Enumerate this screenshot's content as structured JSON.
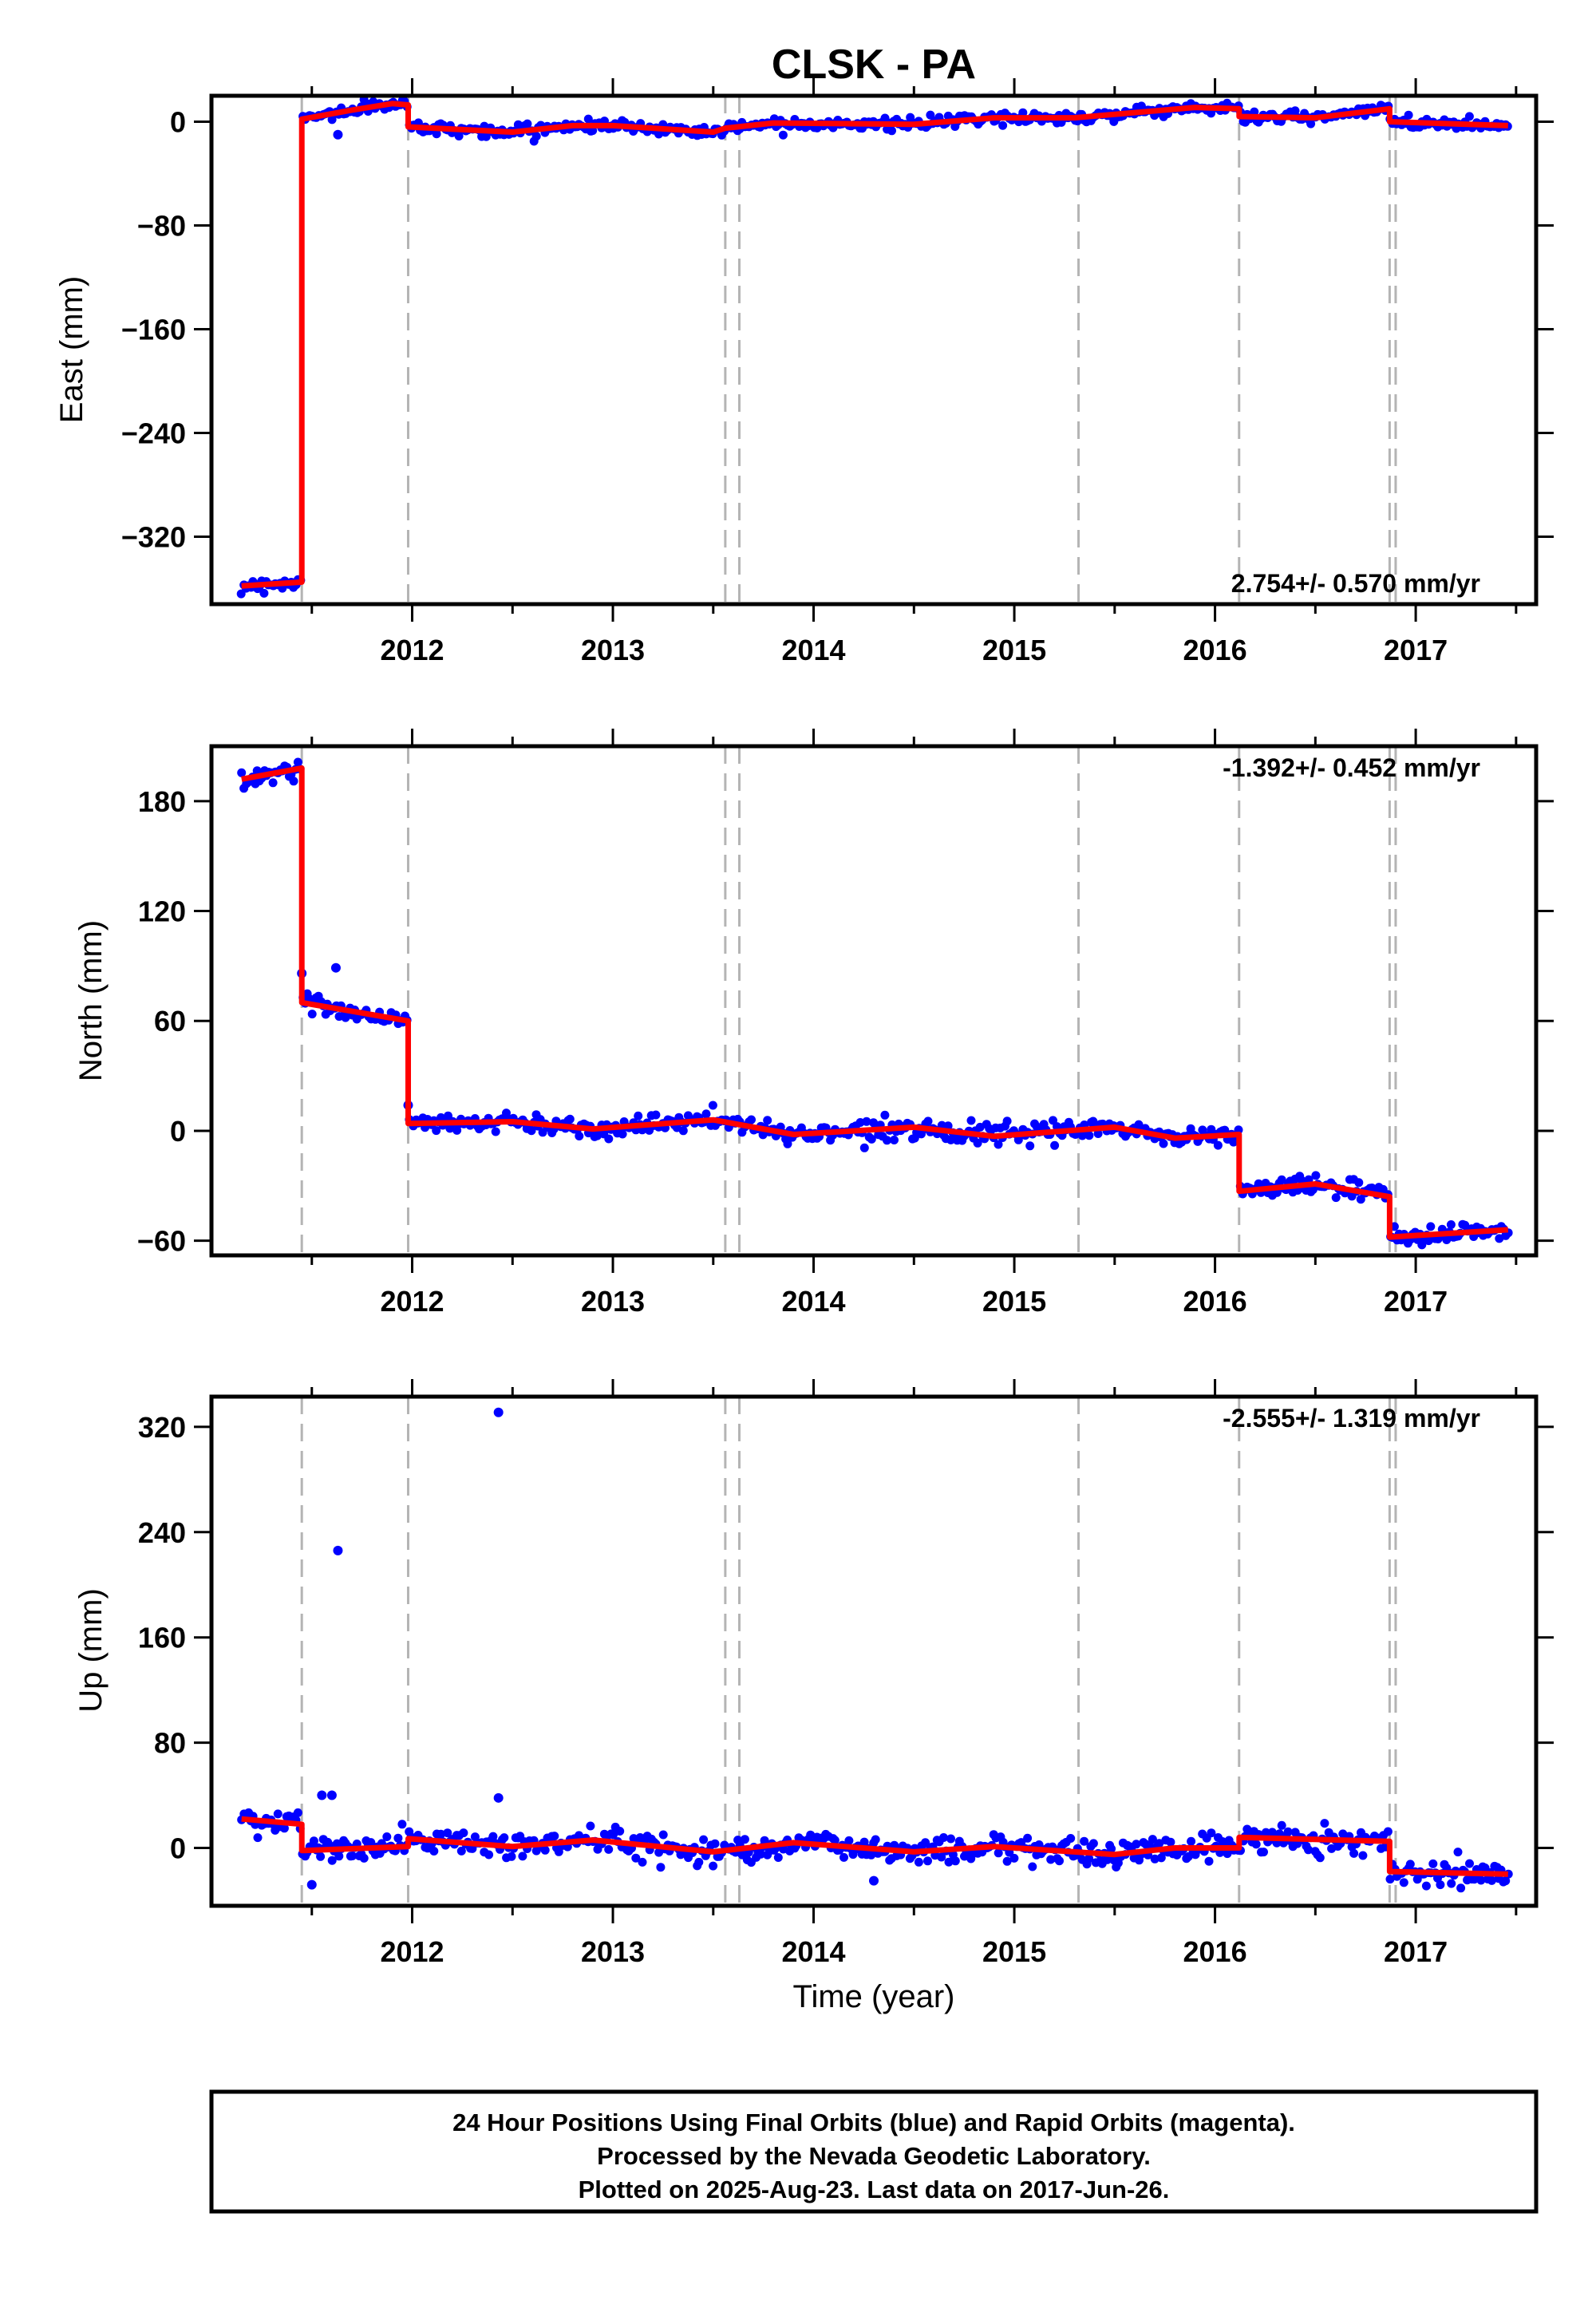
{
  "title": "CLSK - PA",
  "colors": {
    "final": "#0000ff",
    "model": "#ff0000",
    "event": "#b4b4b4",
    "frame": "#000000"
  },
  "chart_data": [
    {
      "type": "scatter",
      "ylabel": "East (mm)",
      "xlabel": "",
      "xlim": [
        2011.0,
        2017.6
      ],
      "ylim": [
        -372,
        20
      ],
      "xticks": [
        2012,
        2013,
        2014,
        2015,
        2016,
        2017
      ],
      "yticks": [
        0,
        -80,
        -160,
        -240,
        -320
      ],
      "rate_label": "2.754+/- 0.570 mm/yr",
      "rate_position": "bottom-right",
      "events": [
        2011.45,
        2011.98,
        2013.56,
        2013.63,
        2015.32,
        2016.12,
        2016.87,
        2016.9
      ],
      "model_series": {
        "name": "model",
        "x": [
          2011.15,
          2011.45,
          2011.45,
          2011.7,
          2011.9,
          2011.98,
          2011.98,
          2012.5,
          2012.8,
          2013.0,
          2013.5,
          2013.56,
          2013.8,
          2014.5,
          2014.9,
          2015.3,
          2015.9,
          2016.12,
          2016.12,
          2016.5,
          2016.87,
          2016.87,
          2017.46
        ],
        "y": [
          -358,
          -355,
          2,
          9,
          14,
          13,
          -4,
          -8,
          -3,
          -3,
          -8,
          -5,
          -1,
          -2,
          3,
          3,
          11,
          10,
          4,
          3,
          10,
          0,
          -3
        ]
      },
      "final_series": {
        "name": "final",
        "sd": 2.2,
        "outliers": [
          [
            2011.63,
            -10
          ]
        ]
      }
    },
    {
      "type": "scatter",
      "ylabel": "North (mm)",
      "xlabel": "",
      "xlim": [
        2011.0,
        2017.6
      ],
      "ylim": [
        -68,
        210
      ],
      "xticks": [
        2012,
        2013,
        2014,
        2015,
        2016,
        2017
      ],
      "yticks": [
        180,
        120,
        60,
        0,
        -60
      ],
      "rate_label": "-1.392+/- 0.452 mm/yr",
      "rate_position": "top-right",
      "events": [
        2011.45,
        2011.98,
        2013.56,
        2013.63,
        2015.32,
        2016.12,
        2016.87,
        2016.9
      ],
      "model_series": {
        "name": "model",
        "x": [
          2011.15,
          2011.45,
          2011.45,
          2011.98,
          2011.98,
          2012.5,
          2012.9,
          2013.5,
          2013.9,
          2014.5,
          2014.9,
          2015.5,
          2015.8,
          2016.12,
          2016.12,
          2016.5,
          2016.87,
          2016.87,
          2017.46
        ],
        "y": [
          192,
          198,
          70,
          60,
          4,
          5,
          1,
          6,
          -2,
          2,
          -3,
          2,
          -4,
          -2,
          -33,
          -29,
          -36,
          -58,
          -54
        ]
      },
      "final_series": {
        "name": "final",
        "sd": 2.5,
        "outliers": [
          [
            2011.62,
            89
          ],
          [
            2011.45,
            86
          ],
          [
            2011.98,
            14
          ]
        ]
      }
    },
    {
      "type": "scatter",
      "ylabel": "Up (mm)",
      "xlabel": "Time (year)",
      "xlim": [
        2011.0,
        2017.6
      ],
      "ylim": [
        -44,
        343
      ],
      "xticks": [
        2012,
        2013,
        2014,
        2015,
        2016,
        2017
      ],
      "yticks": [
        320,
        240,
        160,
        80,
        0
      ],
      "rate_label": "-2.555+/- 1.319 mm/yr",
      "rate_position": "top-right",
      "events": [
        2011.45,
        2011.98,
        2013.56,
        2013.63,
        2015.32,
        2016.12,
        2016.87,
        2016.9
      ],
      "model_series": {
        "name": "model",
        "x": [
          2011.15,
          2011.45,
          2011.45,
          2011.98,
          2011.98,
          2012.5,
          2012.9,
          2013.5,
          2013.9,
          2014.5,
          2014.9,
          2015.5,
          2015.8,
          2016.12,
          2016.12,
          2016.87,
          2016.87,
          2017.46
        ],
        "y": [
          22,
          18,
          -2,
          1,
          7,
          1,
          6,
          -3,
          4,
          -3,
          1,
          -5,
          0,
          0,
          8,
          5,
          -18,
          -20
        ]
      },
      "final_series": {
        "name": "final",
        "sd": 5.0,
        "outliers": [
          [
            2011.63,
            226
          ],
          [
            2012.43,
            331
          ],
          [
            2011.55,
            40
          ],
          [
            2011.6,
            40
          ],
          [
            2012.43,
            38
          ],
          [
            2011.5,
            -28
          ],
          [
            2014.3,
            -25
          ]
        ]
      }
    }
  ],
  "footer": {
    "line1": "24 Hour Positions Using Final Orbits (blue) and Rapid Orbits (magenta).",
    "line2": "Processed by the Nevada Geodetic Laboratory.",
    "line3": "Plotted on 2025-Aug-23. Last data on 2017-Jun-26."
  }
}
